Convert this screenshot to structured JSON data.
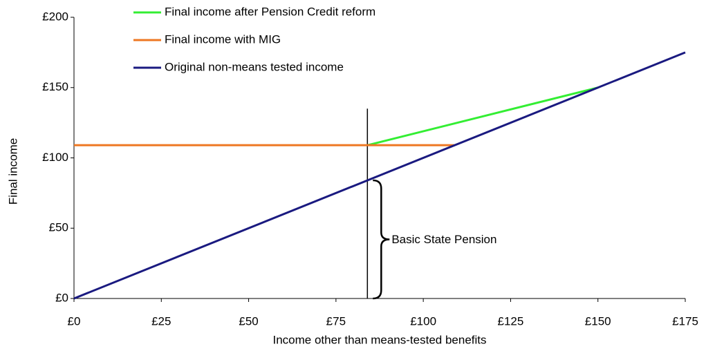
{
  "chart_data": {
    "type": "line",
    "x_label": "Income other than means-tested benefits",
    "y_label": "Final income",
    "xlim": [
      0,
      175
    ],
    "ylim": [
      0,
      200
    ],
    "xticks": [
      {
        "value": 0,
        "label": "£0"
      },
      {
        "value": 25,
        "label": "£25"
      },
      {
        "value": 50,
        "label": "£50"
      },
      {
        "value": 75,
        "label": "£75"
      },
      {
        "value": 100,
        "label": "£100"
      },
      {
        "value": 125,
        "label": "£125"
      },
      {
        "value": 150,
        "label": "£150"
      },
      {
        "value": 175,
        "label": "£175"
      }
    ],
    "yticks": [
      {
        "value": 0,
        "label": "£0"
      },
      {
        "value": 50,
        "label": "£50"
      },
      {
        "value": 100,
        "label": "£100"
      },
      {
        "value": 150,
        "label": "£150"
      },
      {
        "value": 200,
        "label": "£200"
      }
    ],
    "series": [
      {
        "name": "Final income after Pension Credit reform",
        "color": "#33ee33",
        "x": [
          84,
          150
        ],
        "values": [
          109,
          150
        ]
      },
      {
        "name": "Final income with MIG",
        "color": "#ee7722",
        "x": [
          0,
          109
        ],
        "values": [
          109,
          109
        ]
      },
      {
        "name": "Original non-means tested income",
        "color": "#1a1a80",
        "x": [
          0,
          175
        ],
        "values": [
          0,
          175
        ]
      }
    ],
    "vline": {
      "x": 84,
      "y_to": 135
    },
    "annotation": {
      "text": "Basic State Pension",
      "y_from": 0,
      "y_to": 84
    }
  }
}
